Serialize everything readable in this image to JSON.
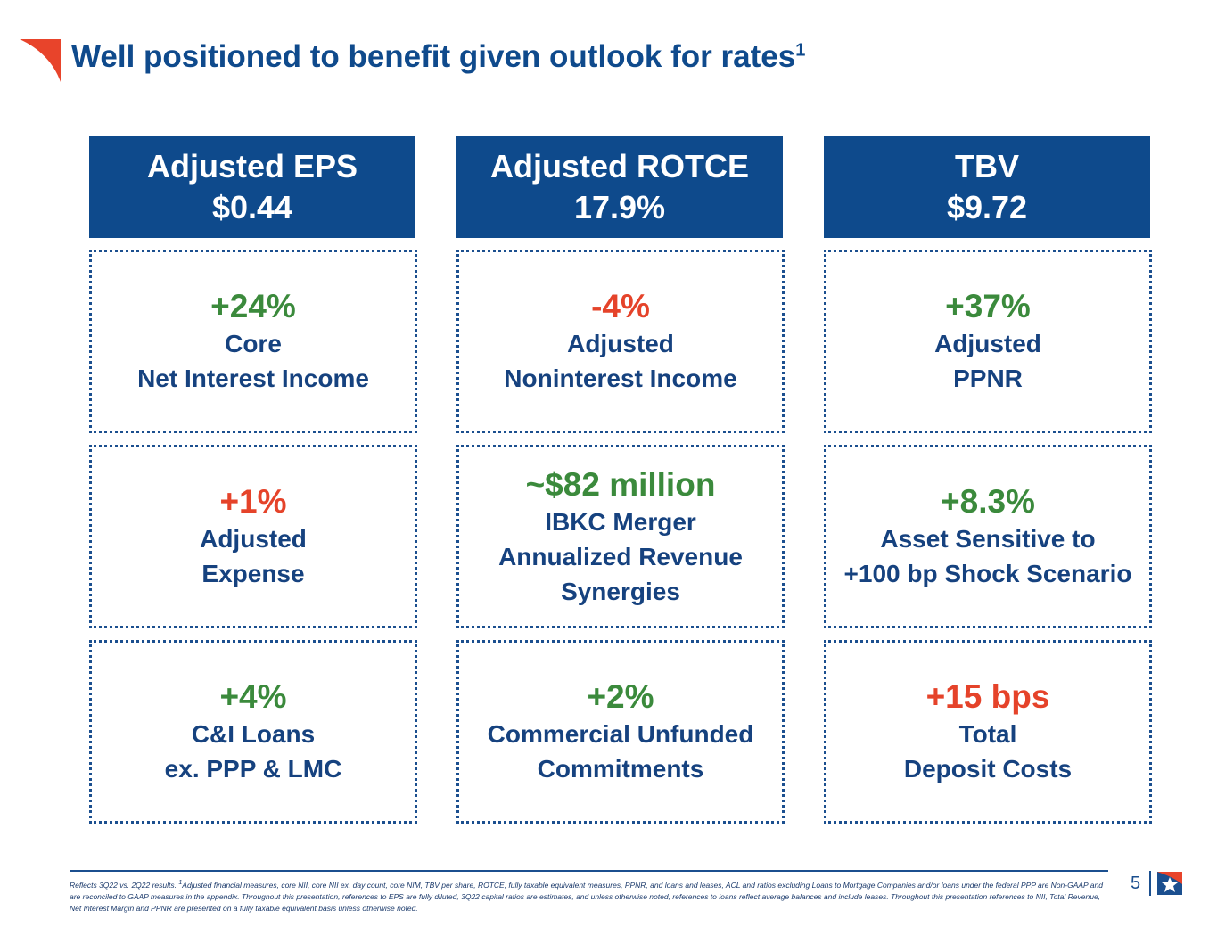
{
  "title": "Well positioned to benefit given outlook for rates",
  "title_sup": "1",
  "columns": [
    {
      "header": "Adjusted EPS",
      "header_value": "$0.44",
      "boxes": [
        {
          "value": "+24%",
          "color": "green",
          "l1": "Core",
          "l2": "Net Interest Income",
          "l3": ""
        },
        {
          "value": "+1%",
          "color": "red",
          "l1": "Adjusted",
          "l2": "Expense",
          "l3": ""
        },
        {
          "value": "+4%",
          "color": "green",
          "l1": "C&I Loans",
          "l2": "ex. PPP & LMC",
          "l3": ""
        }
      ]
    },
    {
      "header": "Adjusted ROTCE",
      "header_value": "17.9%",
      "boxes": [
        {
          "value": "-4%",
          "color": "red",
          "l1": "Adjusted",
          "l2": "Noninterest Income",
          "l3": ""
        },
        {
          "value": "~$82 million",
          "color": "green",
          "l1": "IBKC Merger",
          "l2": "Annualized Revenue",
          "l3": "Synergies"
        },
        {
          "value": "+2%",
          "color": "green",
          "l1": "Commercial Unfunded",
          "l2": "Commitments",
          "l3": ""
        }
      ]
    },
    {
      "header": "TBV",
      "header_value": "$9.72",
      "boxes": [
        {
          "value": "+37%",
          "color": "green",
          "l1": "Adjusted",
          "l2": "PPNR",
          "l3": ""
        },
        {
          "value": "+8.3%",
          "color": "green",
          "l1": "Asset Sensitive to",
          "l2": "+100 bp Shock Scenario",
          "l3": ""
        },
        {
          "value": "+15 bps",
          "color": "red",
          "l1": "Total",
          "l2": "Deposit Costs",
          "l3": ""
        }
      ]
    }
  ],
  "footnote": {
    "pre": "Reflects 3Q22 vs. 2Q22 results. ",
    "sup": "1",
    "text": "Adjusted financial measures, core NII, core NII ex. day count, core NIM, TBV per share, ROTCE, fully taxable equivalent measures, PPNR, and loans and leases, ACL and ratios excluding Loans to Mortgage Companies and/or loans under the federal PPP are Non-GAAP and are reconciled to GAAP measures in the appendix. Throughout this presentation, references to EPS are fully diluted, 3Q22 capital ratios are estimates, and unless otherwise noted, references to loans reflect average balances and include leases. Throughout this presentation references to NII, Total Revenue, Net Interest Margin and PPNR are presented on a fully taxable equivalent basis unless otherwise noted."
  },
  "page_number": "5",
  "colors": {
    "navy": "#0e4a8c",
    "green": "#3b8a3c",
    "red": "#e5432a"
  }
}
